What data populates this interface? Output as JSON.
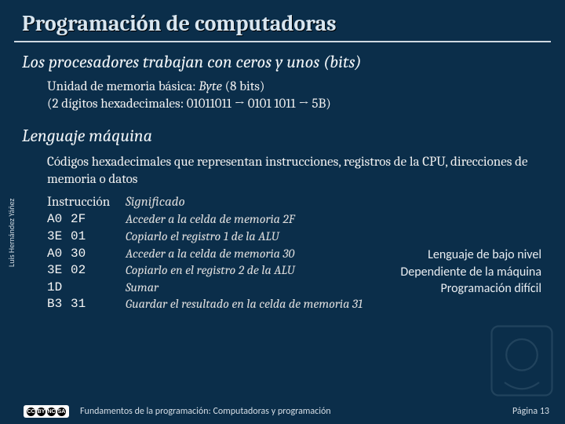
{
  "title": "Programación de computadoras",
  "section1": {
    "heading": "Los procesadores trabajan con ceros y unos (bits)",
    "line1_pre": "Unidad de memoria básica: ",
    "line1_ital": "Byte",
    "line1_post": " (8 bits)",
    "line2": "(2 dígitos hexadecimales: 01011011 → 0101  1011 → 5B)"
  },
  "section2": {
    "heading": "Lenguaje máquina",
    "body": "Códigos hexadecimales que representan instrucciones, registros de la CPU, direcciones de memoria o datos"
  },
  "table": {
    "header_instr": "Instrucción",
    "header_sig": "Significado",
    "rows": [
      {
        "op": "A0",
        "arg": "2F",
        "desc": "Acceder a la celda de memoria 2F"
      },
      {
        "op": "3E",
        "arg": "01",
        "desc": "Copiarlo el registro 1 de la ALU"
      },
      {
        "op": "A0",
        "arg": "30",
        "desc": "Acceder a la celda de memoria 30"
      },
      {
        "op": "3E",
        "arg": "02",
        "desc": "Copiarlo en el registro 2 de la ALU"
      },
      {
        "op": "1D",
        "arg": "",
        "desc": "Sumar"
      },
      {
        "op": "B3",
        "arg": "31",
        "desc": "Guardar el resultado en la celda de memoria 31"
      }
    ]
  },
  "callouts": {
    "l1": "Lenguaje de bajo nivel",
    "l2": "Dependiente de la máquina",
    "l3": "Programación difícil"
  },
  "author": "Luis Hernández Yáñez",
  "footer": {
    "text": "Fundamentos de la programación: Computadoras y programación",
    "page": "Página 13"
  },
  "colors": {
    "background": "#0b2e4a",
    "text": "#e8e8e8",
    "rule": "#cfd8e0"
  }
}
